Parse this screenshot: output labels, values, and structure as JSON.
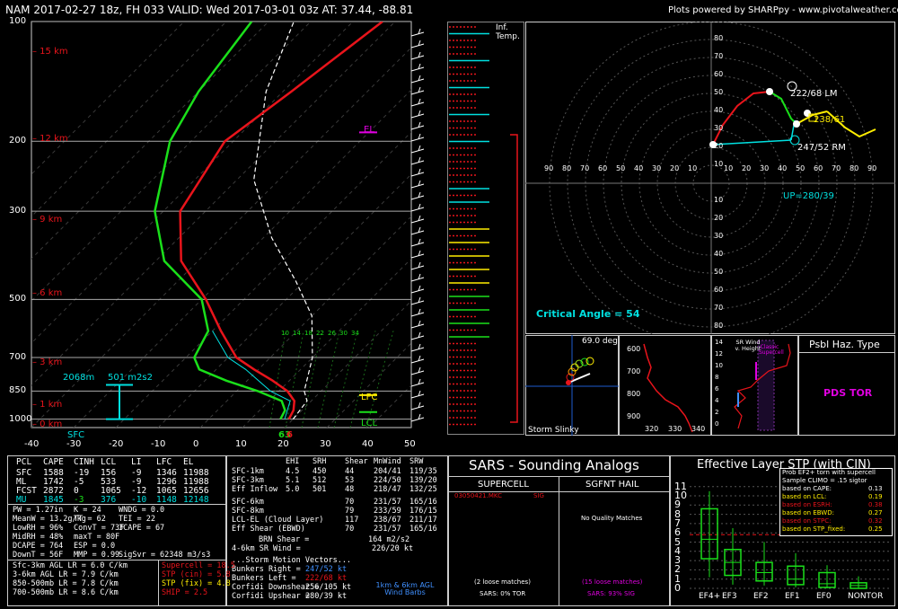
{
  "header": {
    "title": "NAM 2017-02-27 18z, FH 033   VALID: Wed 2017-03-01 03z   AT: 37.44, -88.81",
    "credit": "Plots powered by SHARPpy - www.pivotalweather.com"
  },
  "colors": {
    "temp": "#e8141b",
    "dew": "#1adf1a",
    "parcel": "#ffffff",
    "wetbulb": "#00e0e0",
    "km": "#e8141b",
    "hodo_green": "#1adf1a",
    "yellow": "#ffee00",
    "cyan": "#00e0e0",
    "magenta": "#e000e0"
  },
  "skewt": {
    "pressure_ticks": [
      "100",
      "200",
      "300",
      "500",
      "700",
      "850",
      "1000"
    ],
    "temp_ticks": [
      "-40",
      "-30",
      "-20",
      "-10",
      "0",
      "10",
      "20",
      "30",
      "40",
      "50"
    ],
    "km_labels": [
      "15 km",
      "12 km",
      "9 km",
      "6 km",
      "3 km",
      "1 km",
      "0 km"
    ],
    "el_label": "EL",
    "lfc_label": "LFC",
    "lcl_label": "LCL",
    "helicity_label": "501 m2s2",
    "height_label": "2068m",
    "sfc_label": "SFC",
    "sfc_temp": "66",
    "sfc_dew": "63",
    "mixing_labels": [
      "10",
      "14",
      "18",
      "22",
      "26",
      "30",
      "34"
    ]
  },
  "chart_data": {
    "type": "line",
    "title": "",
    "xlabel": "",
    "ylabel": "",
    "xlim": [
      -40,
      50
    ],
    "ylim": [
      1050,
      100
    ],
    "series": [
      {
        "name": "Temperature",
        "x": [
          19,
          18,
          16,
          12,
          6,
          -1,
          -8,
          -18,
          -29,
          -44,
          -56,
          -62,
          -58,
          -53
        ],
        "y": [
          1000,
          950,
          900,
          850,
          800,
          750,
          700,
          600,
          500,
          400,
          300,
          200,
          150,
          100
        ]
      },
      {
        "name": "Dewpoint",
        "x": [
          17,
          16,
          13,
          5,
          -5,
          -14,
          -18,
          -21,
          -30,
          -48,
          -62,
          -75,
          -80,
          -84
        ],
        "y": [
          1000,
          950,
          900,
          850,
          800,
          750,
          700,
          600,
          500,
          400,
          300,
          200,
          150,
          100
        ]
      }
    ]
  },
  "inftemp_label": "Inf.\nTemp.",
  "hodo": {
    "labels": {
      "lm": "222/68 LM",
      "rm": "247/52 RM",
      "mean": "238/61",
      "up": "UP=280/39"
    },
    "rings_top": [
      "80",
      "70",
      "60",
      "50",
      "40",
      "30",
      "20",
      "10"
    ],
    "xticks": [
      "90",
      "80",
      "70",
      "60",
      "50",
      "40",
      "30",
      "20",
      "10",
      "10",
      "20",
      "30",
      "40",
      "50",
      "60",
      "70",
      "80",
      "90"
    ],
    "rings_bottom": [
      "10",
      "20",
      "30",
      "40",
      "50",
      "60",
      "70",
      "80"
    ],
    "critical_angle": "Critical Angle = 54"
  },
  "slinky": {
    "label": "Storm Slinky",
    "deg": "69.0 deg"
  },
  "theta": {
    "yticks": [
      "600",
      "700",
      "800",
      "900"
    ],
    "xticks": [
      "320",
      "330",
      "340"
    ]
  },
  "srwind": {
    "title": "SR Wind v. Height",
    "yticks": [
      "14",
      "12",
      "10",
      "8",
      "6",
      "4",
      "2",
      "0"
    ],
    "classic": "Classic Supercell"
  },
  "haz": {
    "title": "Psbl Haz. Type",
    "value": "PDS TOR"
  },
  "parcels": {
    "head": [
      "PCL",
      "CAPE",
      "CINH",
      "LCL",
      "LI",
      "LFC",
      "EL"
    ],
    "rows": [
      [
        "SFC",
        "1588",
        "-19",
        "156",
        "-9",
        "1346",
        "11988"
      ],
      [
        "ML",
        "1742",
        "-5",
        "533",
        "-9",
        "1296",
        "11988"
      ],
      [
        "FCST",
        "2872",
        "0",
        "1065",
        "-12",
        "1065",
        "12656"
      ],
      [
        "MU",
        "1845",
        "-3",
        "376",
        "-10",
        "1148",
        "12148"
      ]
    ]
  },
  "indices": [
    [
      "PW = 1.27in",
      "K = 24",
      "WNDG = 0.0"
    ],
    [
      "MeanW = 13.2g/kg",
      "TT = 62",
      "TEI = 22"
    ],
    [
      "LowRH = 96%",
      "ConvT = 73F",
      "3CAPE = 67"
    ],
    [
      "MidRH = 48%",
      "maxT = 80F",
      ""
    ],
    [
      "DCAPE = 764",
      "ESP = 0.0",
      ""
    ],
    [
      "DownT = 56F",
      "MMP = 0.99",
      "SigSvr = 62348 m3/s3"
    ]
  ],
  "lapse": [
    "Sfc-3km AGL LR = 6.0 C/km",
    "3-6km AGL LR = 7.9 C/km",
    "850-500mb LR = 7.8 C/km",
    "700-500mb LR = 8.6 C/km"
  ],
  "composite": [
    {
      "t": "Supercell = 18.5",
      "c": "#e8141b"
    },
    {
      "t": "STP (cin) = 5.8",
      "c": "#e8141b"
    },
    {
      "t": "STP (fix) = 4.8",
      "c": "#ffee00"
    },
    {
      "t": "SHIP = 2.5",
      "c": "#e8141b"
    }
  ],
  "kin": {
    "head": [
      "EHI",
      "SRH",
      "Shear",
      "MnWind",
      "SRW"
    ],
    "rows": [
      [
        "SFC-1km",
        "4.5",
        "450",
        "44",
        "204/41",
        "119/35"
      ],
      [
        "SFC-3km",
        "5.1",
        "512",
        "53",
        "224/50",
        "139/20"
      ],
      [
        "Eff Inflow",
        "5.0",
        "501",
        "48",
        "218/47",
        "132/25"
      ],
      [
        "SFC-6km",
        "",
        "",
        "70",
        "231/57",
        "165/16"
      ],
      [
        "SFC-8km",
        "",
        "",
        "79",
        "233/59",
        "176/15"
      ],
      [
        "LCL-EL (Cloud Layer)",
        "",
        "",
        "117",
        "238/67",
        "211/17"
      ],
      [
        "Eff Shear (EBWD)",
        "",
        "",
        "70",
        "231/57",
        "165/16"
      ]
    ],
    "brn": "BRN Shear =",
    "brn_v": "164 m2/s2",
    "srw": "4-6km SR Wind =",
    "srw_v": "226/20 kt",
    "motion_title": "...Storm Motion Vectors...",
    "motion": [
      {
        "l": "Bunkers Right =",
        "v": "247/52 kt",
        "c": "#4090ff"
      },
      {
        "l": "Bunkers Left =",
        "v": "222/68 kt",
        "c": "#e8141b"
      },
      {
        "l": "Corfidi Downshear =",
        "v": "256/105 kt",
        "c": "#ffffff"
      },
      {
        "l": "Corfidi Upshear =",
        "v": "280/39 kt",
        "c": "#ffffff"
      }
    ],
    "barb_label": "1km & 6km AGL Wind Barbs"
  },
  "sars": {
    "title": "SARS - Sounding Analogs",
    "supercell": "SUPERCELL",
    "hail": "SGFNT HAIL",
    "match": "03050421.MKC",
    "match_tag": "SIG",
    "noq": "No Quality Matches",
    "loose1": "(2 loose matches)",
    "loose2": "(15 loose matches)",
    "tor": "SARS: 0% TOR",
    "sig": "SARS: 93% SIG"
  },
  "stp": {
    "title": "Effective Layer STP (with CIN)",
    "yticks": [
      "11",
      "10",
      "9",
      "8",
      "7",
      "6",
      "5",
      "4",
      "3",
      "2",
      "1",
      "0"
    ],
    "cats": [
      "EF4+",
      "EF3",
      "EF2",
      "EF1",
      "EF0",
      "NONTOR"
    ],
    "prob_title": "Prob EF2+ torn with supercell",
    "clim": "Sample CLIMO = .15 sigtor",
    "rows": [
      {
        "l": "based on CAPE:",
        "v": "0.13",
        "c": "#ffffff"
      },
      {
        "l": "based on LCL:",
        "v": "0.19",
        "c": "#ffee00"
      },
      {
        "l": "based on ESRH:",
        "v": "0.38",
        "c": "#e8141b"
      },
      {
        "l": "based on EBWD:",
        "v": "0.27",
        "c": "#ffee00"
      },
      {
        "l": "based on STPC:",
        "v": "0.32",
        "c": "#e8141b"
      },
      {
        "l": "based on STP_fixed:",
        "v": "0.25",
        "c": "#ffee00"
      }
    ]
  }
}
